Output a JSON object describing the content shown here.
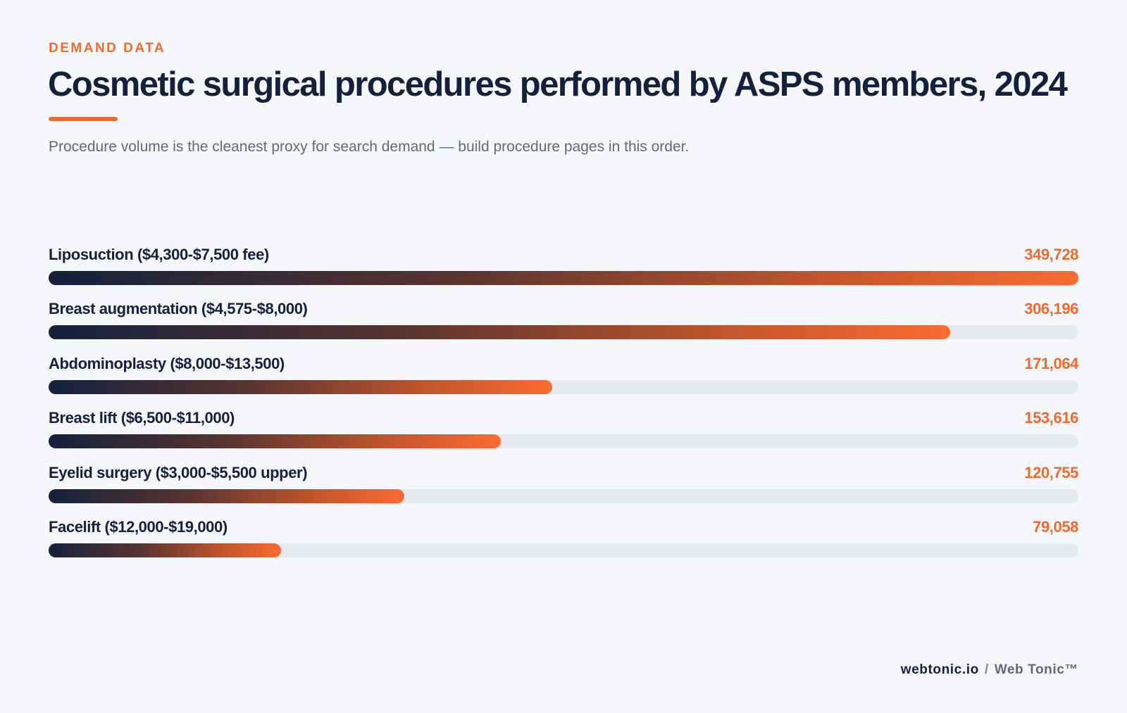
{
  "header": {
    "eyebrow": "DEMAND DATA",
    "title": "Cosmetic surgical procedures performed by ASPS members, 2024",
    "subtitle": "Procedure volume is the cleanest proxy for search demand — build procedure pages in this order."
  },
  "footer": {
    "site": "webtonic.io",
    "separator": "/",
    "brand": "Web Tonic™"
  },
  "colors": {
    "accent": "#f06a2e",
    "navy": "#14213d",
    "track": "#e6e9ee",
    "background": "#f5f7fa"
  },
  "chart_data": {
    "type": "bar",
    "orientation": "horizontal",
    "categories": [
      "Liposuction ($4,300-$7,500 fee)",
      "Breast augmentation ($4,575-$8,000)",
      "Abdominoplasty ($8,000-$13,500)",
      "Breast lift ($6,500-$11,000)",
      "Eyelid surgery ($3,000-$5,500 upper)",
      "Facelift ($12,000-$19,000)"
    ],
    "values": [
      349728,
      306196,
      171064,
      153616,
      120755,
      79058
    ],
    "value_labels": [
      "349,728",
      "306,196",
      "171,064",
      "153,616",
      "120,755",
      "79,058"
    ],
    "xlim": [
      0,
      349728
    ],
    "title": "Cosmetic surgical procedures performed by ASPS members, 2024",
    "grid": false,
    "legend": "none"
  }
}
